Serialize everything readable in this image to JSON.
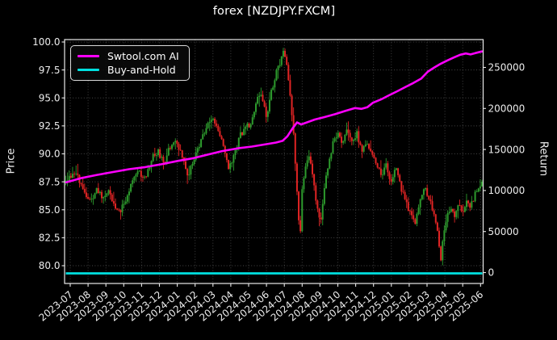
{
  "title": "forex [NZDJPY.FXCM]",
  "legend": {
    "position": "upper left",
    "items": [
      {
        "label": "Swtool.com AI",
        "color": "#ff00ff"
      },
      {
        "label": "Buy-and-Hold",
        "color": "#00e0e0"
      }
    ]
  },
  "axes": {
    "left": {
      "label": "Price",
      "tick_labels": [
        "100.0",
        "97.5",
        "95.0",
        "92.5",
        "90.0",
        "87.5",
        "85.0",
        "82.5",
        "80.0"
      ],
      "tick_values": [
        100,
        97.5,
        95,
        92.5,
        90,
        87.5,
        85,
        82.5,
        80
      ]
    },
    "right": {
      "label": "Return",
      "tick_labels": [
        "250000",
        "200000",
        "150000",
        "100000",
        "50000",
        "0"
      ],
      "tick_values": [
        250000,
        200000,
        150000,
        100000,
        50000,
        0
      ]
    },
    "x": {
      "tick_labels": [
        "2023-07",
        "2023-08",
        "2023-09",
        "2023-10",
        "2023-11",
        "2023-12",
        "2024-01",
        "2024-02",
        "2024-03",
        "2024-04",
        "2024-05",
        "2024-06",
        "2024-07",
        "2024-08",
        "2024-09",
        "2024-10",
        "2024-11",
        "2024-12",
        "2025-01",
        "2025-02",
        "2025-03",
        "2025-04",
        "2025-05",
        "2025-06"
      ]
    }
  },
  "colors": {
    "background": "#000000",
    "text": "#ffffff",
    "grid": "#474747",
    "axis": "#e9e9e9",
    "candle_up": "#2d9b2d",
    "candle_down": "#e02424",
    "ai_line": "#ff00ff",
    "buy_hold_line": "#00e0e0"
  },
  "chart_data": {
    "type": "candlestick",
    "title": "forex [NZDJPY.FXCM]",
    "x_unit": "months since 2023-07 (fractional)",
    "x_range": [
      -0.25,
      23.1
    ],
    "price_ylim": [
      78.4,
      100.4
    ],
    "return_ylim": [
      -13300,
      286000
    ],
    "grid": "dotted",
    "series": [
      {
        "name": "NZDJPY close (keypoints)",
        "axis": "left"
      },
      {
        "name": "Swtool.com AI equity",
        "axis": "right"
      },
      {
        "name": "Buy-and-Hold equity",
        "axis": "right"
      }
    ],
    "price_keypoints": [
      [
        -0.23,
        87.6
      ],
      [
        0.09,
        88.2
      ],
      [
        0.36,
        88.4
      ],
      [
        0.63,
        87.0
      ],
      [
        0.81,
        86.6
      ],
      [
        1.13,
        85.6
      ],
      [
        1.49,
        86.9
      ],
      [
        1.86,
        85.9
      ],
      [
        2.17,
        86.8
      ],
      [
        2.49,
        85.3
      ],
      [
        2.85,
        85.0
      ],
      [
        3.21,
        86.3
      ],
      [
        3.53,
        87.9
      ],
      [
        3.85,
        88.4
      ],
      [
        4.21,
        87.7
      ],
      [
        4.57,
        89.6
      ],
      [
        4.93,
        90.3
      ],
      [
        5.25,
        89.0
      ],
      [
        5.57,
        90.6
      ],
      [
        5.93,
        91.2
      ],
      [
        6.29,
        89.7
      ],
      [
        6.61,
        88.0
      ],
      [
        6.92,
        89.5
      ],
      [
        7.29,
        91.0
      ],
      [
        7.6,
        92.2
      ],
      [
        7.92,
        93.3
      ],
      [
        8.19,
        92.4
      ],
      [
        8.51,
        91.2
      ],
      [
        8.87,
        88.6
      ],
      [
        9.19,
        89.8
      ],
      [
        9.5,
        91.6
      ],
      [
        9.82,
        92.3
      ],
      [
        10.14,
        92.8
      ],
      [
        10.45,
        94.8
      ],
      [
        10.72,
        95.3
      ],
      [
        11.0,
        93.4
      ],
      [
        11.27,
        95.5
      ],
      [
        11.54,
        97.3
      ],
      [
        11.81,
        98.4
      ],
      [
        11.99,
        99.2
      ],
      [
        12.17,
        97.4
      ],
      [
        12.35,
        94.8
      ],
      [
        12.53,
        91.5
      ],
      [
        12.67,
        88.0
      ],
      [
        12.81,
        84.0
      ],
      [
        12.9,
        83.2
      ],
      [
        12.99,
        86.8
      ],
      [
        13.17,
        88.6
      ],
      [
        13.39,
        89.8
      ],
      [
        13.62,
        87.6
      ],
      [
        13.85,
        85.0
      ],
      [
        14.03,
        83.6
      ],
      [
        14.25,
        86.9
      ],
      [
        14.48,
        89.3
      ],
      [
        14.71,
        90.8
      ],
      [
        14.98,
        91.9
      ],
      [
        15.25,
        90.8
      ],
      [
        15.52,
        92.1
      ],
      [
        15.79,
        91.0
      ],
      [
        16.06,
        91.9
      ],
      [
        16.33,
        90.2
      ],
      [
        16.61,
        91.3
      ],
      [
        16.88,
        90.1
      ],
      [
        17.15,
        89.2
      ],
      [
        17.42,
        88.0
      ],
      [
        17.69,
        89.0
      ],
      [
        17.96,
        87.6
      ],
      [
        18.24,
        88.7
      ],
      [
        18.51,
        87.1
      ],
      [
        18.78,
        85.9
      ],
      [
        19.05,
        84.7
      ],
      [
        19.32,
        83.8
      ],
      [
        19.59,
        85.7
      ],
      [
        19.86,
        86.9
      ],
      [
        20.14,
        85.8
      ],
      [
        20.41,
        84.6
      ],
      [
        20.63,
        82.6
      ],
      [
        20.77,
        80.6
      ],
      [
        20.9,
        82.3
      ],
      [
        21.09,
        84.3
      ],
      [
        21.31,
        85.2
      ],
      [
        21.54,
        84.4
      ],
      [
        21.76,
        85.7
      ],
      [
        21.99,
        84.8
      ],
      [
        22.22,
        86.0
      ],
      [
        22.44,
        85.3
      ],
      [
        22.67,
        86.3
      ],
      [
        22.9,
        86.9
      ],
      [
        23.08,
        87.5
      ]
    ],
    "ai_equity_keypoints": [
      [
        -0.23,
        110000
      ],
      [
        0.59,
        115000
      ],
      [
        1.49,
        119000
      ],
      [
        2.4,
        122500
      ],
      [
        3.3,
        126000
      ],
      [
        4.21,
        128500
      ],
      [
        5.11,
        132000
      ],
      [
        6.02,
        136000
      ],
      [
        6.92,
        139500
      ],
      [
        7.74,
        144000
      ],
      [
        8.51,
        148000
      ],
      [
        9.41,
        151500
      ],
      [
        10.18,
        153500
      ],
      [
        11.0,
        156500
      ],
      [
        11.54,
        158500
      ],
      [
        11.9,
        160500
      ],
      [
        12.17,
        166000
      ],
      [
        12.44,
        175000
      ],
      [
        12.71,
        183000
      ],
      [
        12.94,
        180500
      ],
      [
        13.26,
        183000
      ],
      [
        13.71,
        186500
      ],
      [
        14.25,
        189500
      ],
      [
        14.84,
        193000
      ],
      [
        15.43,
        197000
      ],
      [
        15.97,
        200500
      ],
      [
        16.33,
        199500
      ],
      [
        16.65,
        201500
      ],
      [
        16.97,
        207000
      ],
      [
        17.42,
        211000
      ],
      [
        17.87,
        216000
      ],
      [
        18.33,
        221000
      ],
      [
        18.78,
        226000
      ],
      [
        19.23,
        231000
      ],
      [
        19.68,
        236500
      ],
      [
        20.05,
        245000
      ],
      [
        20.41,
        250000
      ],
      [
        20.77,
        254500
      ],
      [
        21.13,
        258500
      ],
      [
        21.49,
        262000
      ],
      [
        21.86,
        265500
      ],
      [
        22.17,
        267000
      ],
      [
        22.44,
        265800
      ],
      [
        22.71,
        267500
      ],
      [
        23.08,
        269500
      ]
    ],
    "buy_and_hold_return": 0
  }
}
